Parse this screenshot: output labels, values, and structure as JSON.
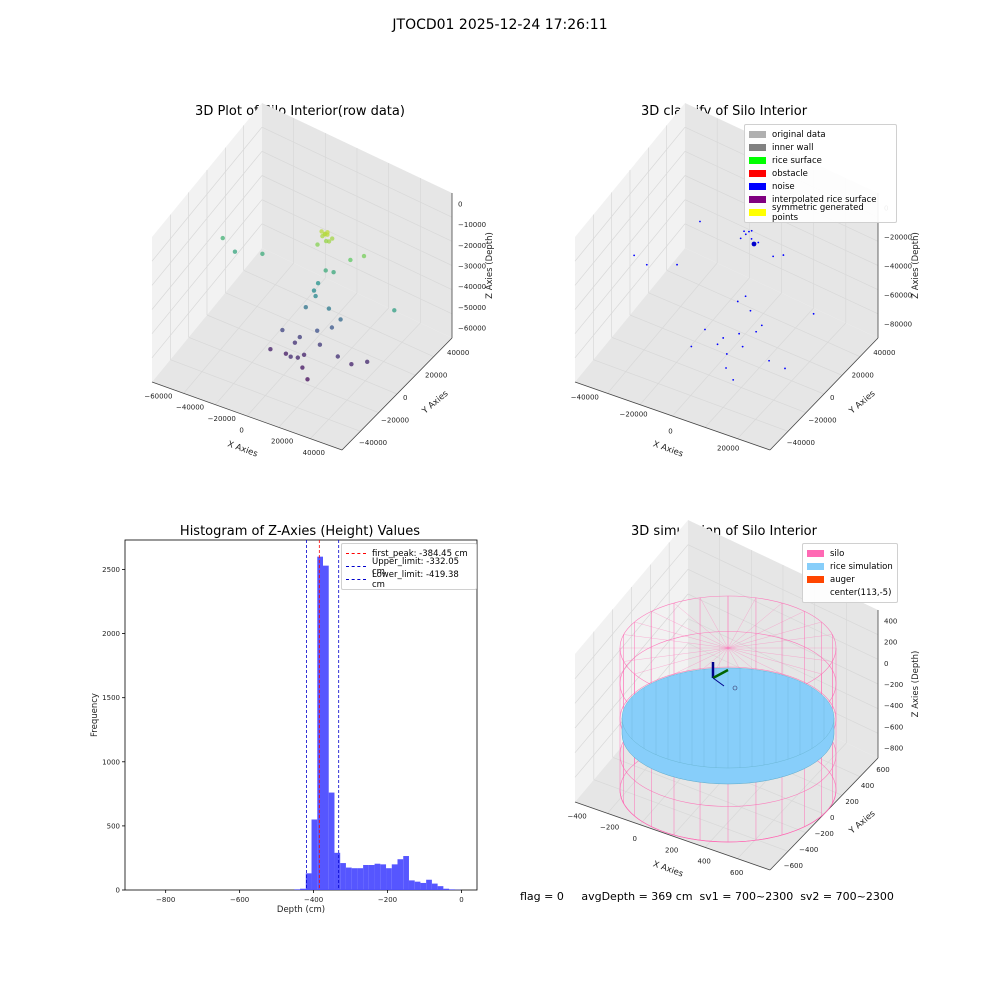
{
  "suptitle": "JTOCD01 2025-12-24 17:26:11",
  "footer": "flag = 0     avgDepth = 369 cm  sv1 = 700~2300  sv2 = 700~2300",
  "colors": {
    "pane": "#f2f2f2",
    "pane_dark": "#e6e6e6",
    "grid": "#d8d8d8",
    "hist_bar": "#4d4dff",
    "silo": "#ff69b4",
    "rice": "#87cefa",
    "auger": "#ff4500",
    "peak_line": "#ff0000",
    "limit_line": "#0000cc"
  },
  "chart_data": [
    {
      "id": "raw",
      "type": "scatter",
      "title": "3D Plot of Silo Interior(row data)",
      "xlabel": "X Axies",
      "ylabel": "Y Axies",
      "zlabel": "Z Axies (Depth)",
      "x_ticks": [
        "−60000",
        "−40000",
        "−20000",
        "0",
        "20000",
        "40000"
      ],
      "y_ticks": [
        "−40000",
        "−20000",
        "0",
        "20000",
        "40000"
      ],
      "z_ticks": [
        "0",
        "−10000",
        "−20000",
        "−30000",
        "−40000",
        "−50000",
        "−60000"
      ],
      "xlim": [
        -60000,
        40000
      ],
      "ylim": [
        -50000,
        50000
      ],
      "zlim": [
        -70000,
        5000
      ],
      "colormap": "viridis",
      "points": [
        [
          -2000,
          4000,
          -3000
        ],
        [
          -1000,
          3000,
          -4500
        ],
        [
          0,
          3500,
          -3500
        ],
        [
          1000,
          4200,
          -2500
        ],
        [
          2500,
          3000,
          -6000
        ],
        [
          -3000,
          2000,
          -9000
        ],
        [
          3000,
          5000,
          -5500
        ],
        [
          500,
          3800,
          -7000
        ],
        [
          -500,
          4500,
          -4000
        ],
        [
          1500,
          3200,
          -3000
        ],
        [
          12000,
          6000,
          -14000
        ],
        [
          18000,
          8000,
          -11000
        ],
        [
          -52000,
          500,
          -22000
        ],
        [
          -45000,
          -500,
          -26000
        ],
        [
          -32000,
          2000,
          -24000
        ],
        [
          -5000,
          6000,
          -32000
        ],
        [
          -6000,
          4000,
          -35000
        ],
        [
          -4000,
          2000,
          -36000
        ],
        [
          -8000,
          0,
          -42000
        ],
        [
          3000,
          2000,
          -40000
        ],
        [
          8000,
          4000,
          -45000
        ],
        [
          38000,
          1000,
          -28000
        ],
        [
          -1000,
          6000,
          -24000
        ],
        [
          2000,
          8000,
          -25000
        ],
        [
          -18000,
          -4000,
          -55000
        ],
        [
          -10000,
          -2000,
          -57000
        ],
        [
          -2000,
          0,
          -52000
        ],
        [
          4000,
          3000,
          -50000
        ],
        [
          0,
          -1000,
          -58000
        ],
        [
          -12000,
          -3000,
          -60000
        ],
        [
          -6000,
          -5000,
          -63000
        ],
        [
          -15000,
          -6000,
          -65000
        ],
        [
          -22000,
          -8000,
          -64000
        ],
        [
          10000,
          -2000,
          -60000
        ],
        [
          16000,
          0,
          -63000
        ],
        [
          -4000,
          -10000,
          -66000
        ],
        [
          1000,
          -14000,
          -68000
        ],
        [
          22000,
          4000,
          -62000
        ],
        [
          -9000,
          -12000,
          -61000
        ],
        [
          -7000,
          -9000,
          -62500
        ]
      ]
    },
    {
      "id": "classify",
      "type": "scatter",
      "title": "3D classify of Silo Interior",
      "xlabel": "X Axies",
      "ylabel": "Y Axies",
      "zlabel": "Z Axies (Depth)",
      "x_ticks": [
        "−40000",
        "−20000",
        "0",
        "20000"
      ],
      "y_ticks": [
        "−40000",
        "−20000",
        "0",
        "20000",
        "40000"
      ],
      "z_ticks": [
        "0",
        "−20000",
        "−40000",
        "−60000",
        "−80000"
      ],
      "xlim": [
        -50000,
        35000
      ],
      "ylim": [
        -50000,
        50000
      ],
      "zlim": [
        -80000,
        5000
      ],
      "legend": [
        {
          "label": "original data",
          "color": "#b0b0b0"
        },
        {
          "label": "inner wall",
          "color": "#808080"
        },
        {
          "label": "rice surface",
          "color": "#00ff00"
        },
        {
          "label": "obstacle",
          "color": "#ff0000"
        },
        {
          "label": "noise",
          "color": "#0000ff"
        },
        {
          "label": "interpolated rice surface",
          "color": "#800080"
        },
        {
          "label": "symmetric generated points",
          "color": "#ffff00"
        }
      ],
      "points": [
        [
          -1500,
          3500,
          -4000
        ],
        [
          -500,
          3000,
          -5000
        ],
        [
          500,
          3800,
          -3500
        ],
        [
          1500,
          4200,
          -2800
        ],
        [
          2000,
          3000,
          -6500
        ],
        [
          -2500,
          2500,
          -8000
        ],
        [
          4000,
          5000,
          -9000
        ],
        [
          10000,
          6000,
          -15000
        ],
        [
          14000,
          7000,
          -13000
        ],
        [
          -20000,
          2000,
          -6000
        ],
        [
          -48000,
          500,
          -38000
        ],
        [
          -42000,
          -500,
          -40000
        ],
        [
          -30000,
          2000,
          -36000
        ],
        [
          -2000,
          6000,
          -44000
        ],
        [
          -4000,
          3000,
          -46000
        ],
        [
          2000,
          2000,
          -48000
        ],
        [
          30000,
          1000,
          -36000
        ],
        [
          -15000,
          -4000,
          -63000
        ],
        [
          -8000,
          -2000,
          -66000
        ],
        [
          -2000,
          0,
          -62000
        ],
        [
          4000,
          3000,
          -60000
        ],
        [
          0,
          -1000,
          -68000
        ],
        [
          -10000,
          -3000,
          -70000
        ],
        [
          -5000,
          -5000,
          -72000
        ],
        [
          12000,
          -2000,
          -70000
        ],
        [
          18000,
          0,
          -73000
        ],
        [
          -3000,
          -10000,
          -76000
        ],
        [
          2000,
          -14000,
          -78000
        ],
        [
          -20000,
          -6000,
          -74000
        ],
        [
          6000,
          4000,
          -56000
        ]
      ]
    },
    {
      "id": "hist",
      "type": "bar",
      "title": "Histogram of Z-Axies (Height) Values",
      "xlabel": "Depth (cm)",
      "ylabel": "Frequency",
      "x_ticks": [
        -800,
        -600,
        -400,
        -200,
        0
      ],
      "y_ticks": [
        0,
        500,
        1000,
        1500,
        2000,
        2500
      ],
      "xlim": [
        -910,
        42
      ],
      "ylim": [
        0,
        2730
      ],
      "bin_width": 15.5,
      "bin_starts": [
        -452,
        -436.5,
        -421,
        -405.5,
        -390,
        -374.5,
        -359,
        -343.5,
        -328,
        -312.5,
        -297,
        -281.5,
        -266,
        -250.5,
        -235,
        -219.5,
        -204,
        -188.5,
        -173,
        -157.5,
        -142,
        -126.5,
        -111,
        -95.5,
        -80,
        -64.5,
        -49,
        -33.5,
        -18
      ],
      "values": [
        5,
        10,
        130,
        550,
        2600,
        2530,
        760,
        290,
        210,
        175,
        170,
        170,
        195,
        195,
        205,
        200,
        170,
        200,
        240,
        265,
        75,
        65,
        55,
        80,
        50,
        30,
        10,
        5,
        2
      ],
      "vlines": [
        {
          "label": "first_peak: -384.45 cm",
          "x": -384.45,
          "color": "#ff0000"
        },
        {
          "label": "Upper_limit: -332.05 cm",
          "x": -332.05,
          "color": "#0000cc"
        },
        {
          "label": "Lower_limit: -419.38 cm",
          "x": -419.38,
          "color": "#0000cc"
        }
      ]
    },
    {
      "id": "sim",
      "type": "scatter",
      "title": "3D simulation of Silo Interior",
      "xlabel": "X Axies",
      "ylabel": "Y Axies",
      "zlabel": "Z Axies (Depth)",
      "x_ticks": [
        "−400",
        "−200",
        "0",
        "200",
        "400",
        "600"
      ],
      "y_ticks": [
        "−600",
        "−400",
        "−200",
        "0",
        "200",
        "400",
        "600"
      ],
      "z_ticks": [
        "400",
        "200",
        "0",
        "−200",
        "−400",
        "−600",
        "−800"
      ],
      "xlim": [
        -500,
        700
      ],
      "ylim": [
        -650,
        650
      ],
      "zlim": [
        -900,
        450
      ],
      "legend": [
        {
          "label": "silo",
          "color": "#ff69b4"
        },
        {
          "label": "rice simulation",
          "color": "#87cefa"
        },
        {
          "label": "auger",
          "color": "#ff4500"
        },
        {
          "label": "center(113,-5)",
          "color": ""
        }
      ],
      "center": [
        113,
        -5
      ],
      "silo_radius": 550,
      "silo_z": [
        -900,
        0
      ],
      "rice_z": -369
    }
  ]
}
